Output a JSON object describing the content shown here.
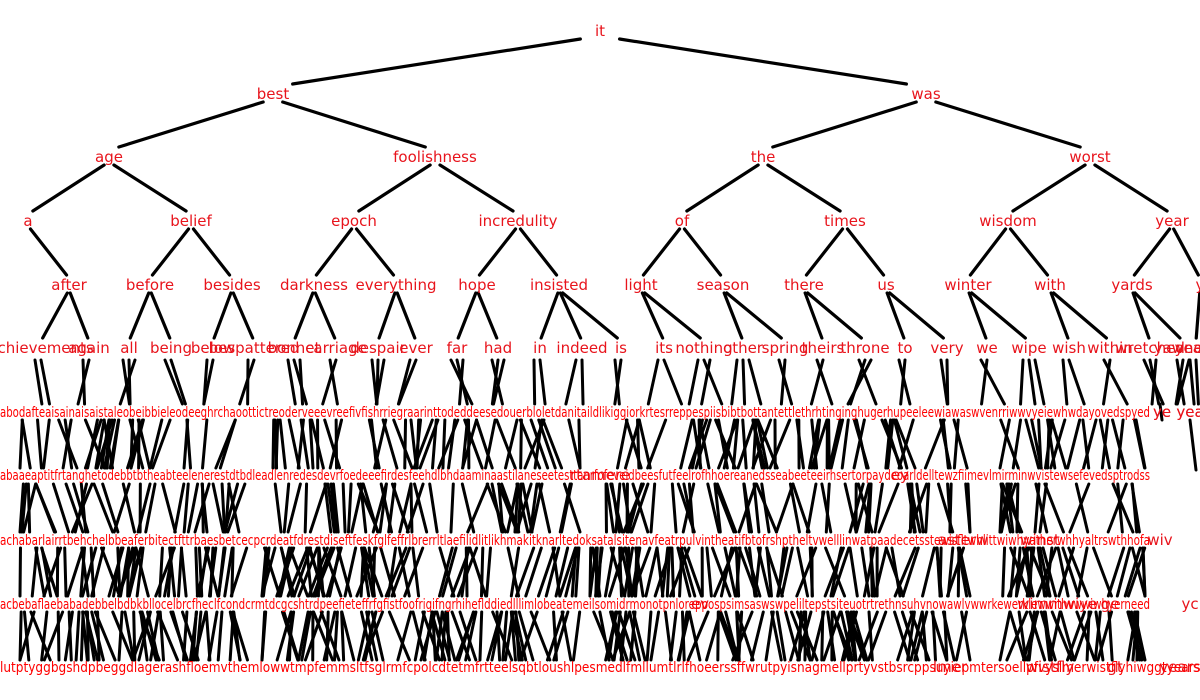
{
  "diagram": {
    "type": "binary-search-tree",
    "colors": {
      "label": "#e8141c",
      "edge": "#000000",
      "background": "#ffffff"
    },
    "root": "it",
    "levels": [
      [
        "it"
      ],
      [
        "best",
        "was"
      ],
      [
        "age",
        "foolishness",
        "the",
        "worst"
      ],
      [
        "a",
        "belief",
        "epoch",
        "incredulity",
        "of",
        "times",
        "wisdom",
        "year"
      ],
      [
        "after",
        "before",
        "besides",
        "darkness",
        "everything",
        "hope",
        "insisted",
        "light",
        "season",
        "there",
        "us",
        "winter",
        "with",
        "yards",
        "y"
      ],
      [
        "achievements",
        "again",
        "all",
        "being",
        "below",
        "bespattered",
        "bonnet",
        "carriage",
        "despair",
        "ever",
        "far",
        "had",
        "in",
        "indeed",
        "is",
        "its",
        "nothing",
        "other",
        "spring",
        "theirs",
        "throne",
        "to",
        "very",
        "we",
        "wipe",
        "wish",
        "within",
        "wretched",
        "yawned",
        "yearn"
      ],
      [
        "ye",
        "yea"
      ],
      [
        "rtamere",
        "ey"
      ],
      [
        "asterw",
        "winst",
        "wiv"
      ],
      [
        "ev",
        "wimm",
        "wiye",
        "ge",
        "yc"
      ],
      [
        "lmer",
        "wistfly",
        "gt",
        "years"
      ]
    ],
    "dense_rows": [
      "abodafteaisainaisaistaleobeibbieleodeeghrchaoottictreoderveeevreefivfishrriegraarinttodeddeesedouerbloletdanitaildlikiggiorkrtesrreppespiisbibtbottantettlethrhtinginghugerhupeeleewiawaswvenrriwwvyeiewhwdayovedspyed",
      "abaaeaptitfrtanghetodebbtbtheabteelenerestdtbdleadlenredesdevrfoedeeefirdesfeehdlbhdaaminaastilaneseetesttanrfofeveidbeesfutfeelrofhhoereanedsseabeeteeirhsertorpaydeoarldelltewzfiimevlmirminwvistewsefevedsptrodss",
      "achabarlairrtbehchelbbeaferbitectfttrbaesbetcecpcrdeatfdrestdiseftfeskfglfeffrlbrerrltlaefilidlitlikhmakitknarltedoksatalsitenavfeatrpulvintheatifbtofrshptheltvwelllinwatpaadecetsstewisfltwhlittwiwhyatherwhhyaltrswthhofa",
      "acbebaflaebabadebbelbdbkbllocelbrcfheclfcondcrmtdcgcshtrdpeefieteffrfgfistfoofrigifngrhiheflddiedlllimlobeatemeilsomidrmonotpnloreppospsimsaswswpeliltepstsiteuotrtrethnsuhvnowawlvwwrkewerklewwithvwwiwhyerneed",
      "lutptyggbgshdpbeggdlagerashfloemvthemlowwtmpfemmsltfsglrmfcpolcdtetmfrtteelsqbtloushlpesmedlfmllumtlrlfhoeerssffwrutpyisnagmellprtyvstbsrcppsuyiepmtersoellpfvyslmerwistflyhiwggtyears"
    ]
  }
}
